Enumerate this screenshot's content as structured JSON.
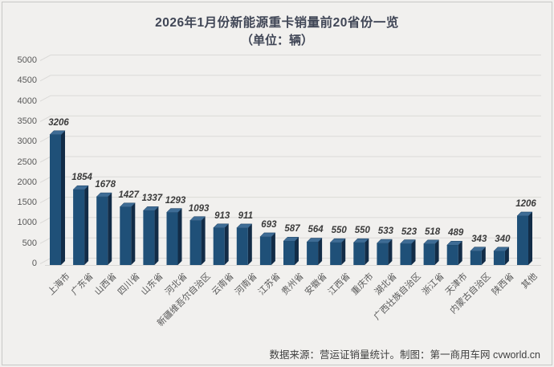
{
  "footer": {
    "text": "数据来源：营运证销量统计。制图：第一商用车网 cvworld.cn"
  },
  "chart_data": {
    "type": "bar",
    "style": "3d-column",
    "title": "2026年1月份新能源重卡销量前20省份一览",
    "subtitle": "（单位：辆）",
    "unit": "辆",
    "categories": [
      "上海市",
      "广东省",
      "山西省",
      "四川省",
      "山东省",
      "河北省",
      "新疆维吾尔自治区",
      "云南省",
      "河南省",
      "江苏省",
      "贵州省",
      "安徽省",
      "江西省",
      "重庆市",
      "湖北省",
      "广西壮族自治区",
      "浙江省",
      "天津市",
      "内蒙古自治区",
      "陕西省",
      "其他"
    ],
    "values": [
      3206,
      1854,
      1678,
      1427,
      1337,
      1293,
      1093,
      913,
      911,
      693,
      587,
      564,
      550,
      550,
      533,
      523,
      518,
      489,
      343,
      340,
      1206
    ],
    "ylim": [
      0,
      5000
    ],
    "ytick_step": 500,
    "yticks": [
      0,
      500,
      1000,
      1500,
      2000,
      2500,
      3000,
      3500,
      4000,
      4500,
      5000
    ],
    "grid": true,
    "legend": false,
    "data_labels": true,
    "colors": {
      "bar_front": "#1F5078",
      "bar_top": "#3E6C95",
      "bar_side": "#122C47",
      "bar_edge": "#1A3F61",
      "background": "#F1F0EE",
      "gridline": "#DBDAD8",
      "floor_line": "#D8D7D5",
      "value_label": "#3A3A3A",
      "axis_label": "#595959",
      "title": "#404656",
      "footer": "#3F3F3F",
      "frame_border": "#C8C8C6"
    }
  }
}
